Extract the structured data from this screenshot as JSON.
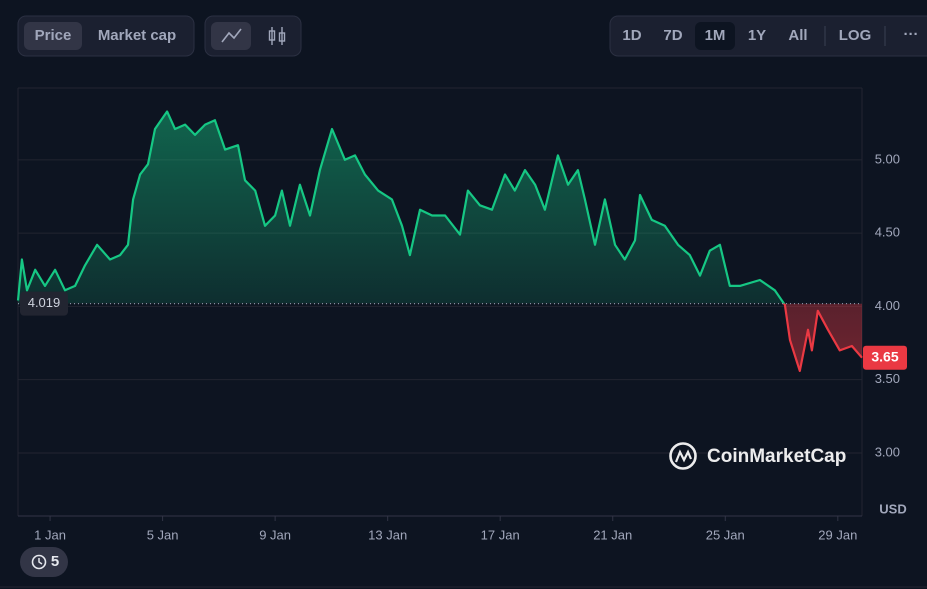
{
  "toolbar": {
    "metric_tabs": [
      "Price",
      "Market cap"
    ],
    "active_metric_index": 0,
    "ranges": [
      "1D",
      "7D",
      "1M",
      "1Y",
      "All"
    ],
    "active_range_index": 2,
    "log": "LOG",
    "more": "···"
  },
  "chart_data": {
    "type": "line",
    "x": [
      -0.14,
      0.0,
      0.18,
      0.47,
      0.82,
      1.18,
      1.53,
      1.89,
      2.24,
      2.67,
      3.13,
      3.49,
      3.77,
      3.95,
      4.2,
      4.48,
      4.73,
      5.16,
      5.44,
      5.8,
      6.15,
      6.51,
      6.86,
      7.22,
      7.68,
      7.93,
      8.29,
      8.64,
      9.0,
      9.24,
      9.53,
      9.88,
      10.24,
      10.59,
      11.02,
      11.48,
      11.84,
      12.19,
      12.66,
      13.15,
      13.51,
      13.79,
      14.15,
      14.58,
      15.04,
      15.57,
      15.85,
      16.28,
      16.71,
      17.17,
      17.52,
      17.88,
      18.24,
      18.59,
      19.05,
      19.41,
      19.76,
      20.01,
      20.37,
      20.72,
      21.08,
      21.43,
      21.79,
      21.97,
      22.39,
      22.85,
      23.32,
      23.74,
      24.1,
      24.45,
      24.81,
      25.16,
      25.52,
      26.23,
      26.76,
      27.12,
      27.3,
      27.65,
      27.94,
      28.08,
      28.29,
      28.65,
      29.07,
      29.5,
      29.86
    ],
    "values": [
      4.04,
      4.32,
      4.11,
      4.25,
      4.14,
      4.25,
      4.11,
      4.14,
      4.28,
      4.42,
      4.32,
      4.35,
      4.42,
      4.73,
      4.9,
      4.97,
      5.21,
      5.33,
      5.21,
      5.24,
      5.17,
      5.24,
      5.27,
      5.07,
      5.1,
      4.86,
      4.79,
      4.55,
      4.62,
      4.79,
      4.55,
      4.83,
      4.62,
      4.93,
      5.21,
      5.0,
      5.03,
      4.9,
      4.79,
      4.73,
      4.55,
      4.35,
      4.66,
      4.62,
      4.62,
      4.49,
      4.79,
      4.69,
      4.66,
      4.9,
      4.79,
      4.93,
      4.83,
      4.66,
      5.03,
      4.83,
      4.93,
      4.73,
      4.42,
      4.73,
      4.42,
      4.32,
      4.45,
      4.76,
      4.59,
      4.55,
      4.42,
      4.35,
      4.21,
      4.38,
      4.42,
      4.14,
      4.14,
      4.18,
      4.11,
      4.01,
      3.77,
      3.56,
      3.84,
      3.7,
      3.97,
      3.84,
      3.7,
      3.73,
      3.65
    ],
    "xlim": [
      -0.14,
      29.86
    ],
    "xticks": [
      {
        "value": 1,
        "label": "1 Jan"
      },
      {
        "value": 5,
        "label": "5 Jan"
      },
      {
        "value": 9,
        "label": "9 Jan"
      },
      {
        "value": 13,
        "label": "13 Jan"
      },
      {
        "value": 17,
        "label": "17 Jan"
      },
      {
        "value": 21,
        "label": "21 Jan"
      },
      {
        "value": 25,
        "label": "25 Jan"
      },
      {
        "value": 29,
        "label": "29 Jan"
      }
    ],
    "ylim": [
      2.57,
      5.49
    ],
    "yticks": [
      {
        "value": 3,
        "label": "3.00"
      },
      {
        "value": 3.5,
        "label": "3.50"
      },
      {
        "value": 4,
        "label": "4.00"
      },
      {
        "value": 4.5,
        "label": "4.50"
      },
      {
        "value": 5,
        "label": "5.00"
      }
    ],
    "grid": true,
    "baseline": 4.019,
    "colors": {
      "up": "#16c784",
      "down": "#ea3943"
    },
    "y_axis_label": "USD",
    "watermark": "CoinMarketCap"
  },
  "history_badge": "5"
}
